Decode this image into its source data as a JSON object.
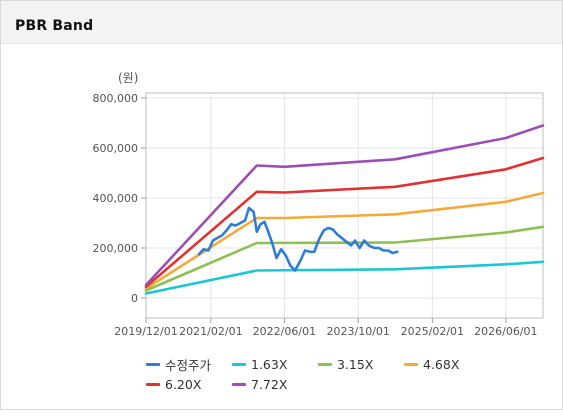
{
  "header": {
    "title": "PBR Band"
  },
  "chart_data": {
    "type": "line",
    "unit_label": "(원)",
    "ylim": [
      -80000,
      820000
    ],
    "y_ticks": [
      0,
      200000,
      400000,
      600000,
      800000
    ],
    "y_tick_labels": [
      "0",
      "200,000",
      "400,000",
      "600,000",
      "800,000"
    ],
    "x_range": [
      "2019-12-01",
      "2027-02-01"
    ],
    "x_ticks": [
      "2019-12-01",
      "2021-02-01",
      "2022-06-01",
      "2023-10-01",
      "2025-02-01",
      "2026-06-01"
    ],
    "x_tick_labels": [
      "2019/12/01",
      "2021/02/01",
      "2022/06/01",
      "2023/10/01",
      "2025/02/01",
      "2026/06/01"
    ],
    "grid": true,
    "legend_position": "bottom",
    "series": [
      {
        "name": "수정주가",
        "color": "#2f7bd8",
        "points": [
          [
            "2020-11-15",
            175000
          ],
          [
            "2020-12-15",
            195000
          ],
          [
            "2021-01-15",
            190000
          ],
          [
            "2021-02-15",
            230000
          ],
          [
            "2021-03-15",
            240000
          ],
          [
            "2021-04-15",
            250000
          ],
          [
            "2021-05-15",
            270000
          ],
          [
            "2021-06-15",
            295000
          ],
          [
            "2021-07-15",
            290000
          ],
          [
            "2021-08-15",
            300000
          ],
          [
            "2021-09-15",
            310000
          ],
          [
            "2021-10-10",
            360000
          ],
          [
            "2021-11-10",
            345000
          ],
          [
            "2021-12-01",
            265000
          ],
          [
            "2021-12-25",
            295000
          ],
          [
            "2022-01-20",
            305000
          ],
          [
            "2022-02-15",
            265000
          ],
          [
            "2022-03-15",
            215000
          ],
          [
            "2022-04-10",
            160000
          ],
          [
            "2022-05-10",
            195000
          ],
          [
            "2022-06-10",
            170000
          ],
          [
            "2022-07-10",
            130000
          ],
          [
            "2022-08-10",
            110000
          ],
          [
            "2022-09-15",
            150000
          ],
          [
            "2022-10-15",
            190000
          ],
          [
            "2022-11-15",
            185000
          ],
          [
            "2022-12-15",
            185000
          ],
          [
            "2023-01-15",
            235000
          ],
          [
            "2023-02-15",
            270000
          ],
          [
            "2023-03-15",
            280000
          ],
          [
            "2023-04-15",
            275000
          ],
          [
            "2023-05-15",
            255000
          ],
          [
            "2023-06-15",
            240000
          ],
          [
            "2023-07-15",
            225000
          ],
          [
            "2023-08-15",
            210000
          ],
          [
            "2023-09-10",
            230000
          ],
          [
            "2023-10-10",
            200000
          ],
          [
            "2023-11-10",
            230000
          ],
          [
            "2023-12-10",
            210000
          ],
          [
            "2024-01-15",
            200000
          ],
          [
            "2024-02-15",
            200000
          ],
          [
            "2024-03-15",
            190000
          ],
          [
            "2024-04-15",
            190000
          ],
          [
            "2024-05-15",
            180000
          ],
          [
            "2024-06-15",
            185000
          ]
        ]
      },
      {
        "name": "1.63X",
        "color": "#1dc6d4",
        "points": [
          [
            "2019-12-01",
            18000
          ],
          [
            "2021-12-01",
            110000
          ],
          [
            "2024-06-01",
            115000
          ],
          [
            "2026-06-01",
            135000
          ],
          [
            "2027-02-01",
            145000
          ]
        ]
      },
      {
        "name": "3.15X",
        "color": "#8cc152",
        "points": [
          [
            "2019-12-01",
            30000
          ],
          [
            "2021-12-01",
            220000
          ],
          [
            "2024-06-01",
            222000
          ],
          [
            "2026-06-01",
            262000
          ],
          [
            "2027-02-01",
            285000
          ]
        ]
      },
      {
        "name": "4.68X",
        "color": "#f5a939",
        "points": [
          [
            "2019-12-01",
            38000
          ],
          [
            "2021-12-01",
            320000
          ],
          [
            "2022-06-01",
            320000
          ],
          [
            "2024-06-01",
            335000
          ],
          [
            "2026-06-01",
            385000
          ],
          [
            "2027-02-01",
            420000
          ]
        ]
      },
      {
        "name": "6.20X",
        "color": "#e03232",
        "points": [
          [
            "2019-12-01",
            45000
          ],
          [
            "2021-12-01",
            425000
          ],
          [
            "2022-06-01",
            422000
          ],
          [
            "2024-06-01",
            445000
          ],
          [
            "2026-06-01",
            515000
          ],
          [
            "2027-02-01",
            560000
          ]
        ]
      },
      {
        "name": "7.72X",
        "color": "#9b4fb5",
        "points": [
          [
            "2019-12-01",
            52000
          ],
          [
            "2021-12-01",
            530000
          ],
          [
            "2022-06-01",
            525000
          ],
          [
            "2024-06-01",
            555000
          ],
          [
            "2026-06-01",
            640000
          ],
          [
            "2027-02-01",
            690000
          ]
        ]
      }
    ]
  }
}
